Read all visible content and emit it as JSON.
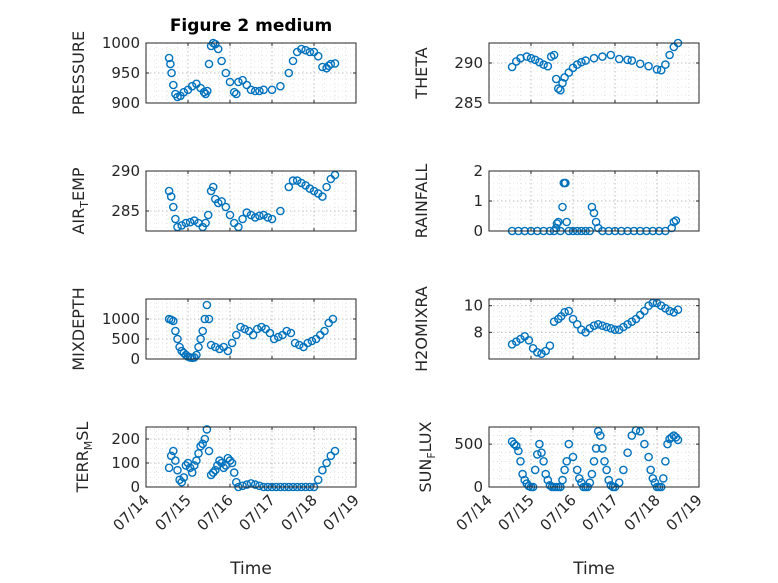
{
  "figure": {
    "title": "Figure 2 medium",
    "xlabel": "Time",
    "x_tick_labels": [
      "07/14",
      "07/15",
      "07/16",
      "07/17",
      "07/18",
      "07/19"
    ],
    "marker": "circle",
    "marker_color": "#0072BD"
  },
  "chart_data": [
    {
      "type": "scatter",
      "id": "pressure",
      "ylabel": "PRESSURE",
      "title": "Figure 2 medium",
      "xlim": [
        "07/14",
        "07/19"
      ],
      "ylim": [
        900,
        1000
      ],
      "yticks": [
        900,
        950,
        1000
      ],
      "grid": true,
      "x": [
        0.55,
        0.58,
        0.61,
        0.65,
        0.7,
        0.75,
        0.82,
        0.9,
        1.0,
        1.1,
        1.2,
        1.3,
        1.38,
        1.42,
        1.46,
        1.5,
        1.55,
        1.6,
        1.65,
        1.72,
        1.8,
        1.9,
        2.0,
        2.1,
        2.15,
        2.2,
        2.3,
        2.4,
        2.5,
        2.6,
        2.7,
        2.8,
        3.0,
        3.2,
        3.4,
        3.5,
        3.6,
        3.7,
        3.8,
        3.9,
        4.0,
        4.1,
        4.2,
        4.3,
        4.35,
        4.4,
        4.5
      ],
      "y": [
        975,
        965,
        950,
        930,
        915,
        910,
        912,
        918,
        922,
        928,
        932,
        925,
        918,
        915,
        920,
        965,
        995,
        1000,
        998,
        990,
        970,
        950,
        935,
        918,
        915,
        935,
        938,
        930,
        922,
        920,
        920,
        922,
        922,
        928,
        950,
        970,
        985,
        990,
        988,
        985,
        985,
        978,
        960,
        958,
        962,
        965,
        966
      ]
    },
    {
      "type": "scatter",
      "id": "theta",
      "ylabel": "THETA",
      "xlim": [
        "07/14",
        "07/19"
      ],
      "ylim": [
        285,
        292.5
      ],
      "yticks": [
        285,
        290
      ],
      "grid": true,
      "x": [
        0.55,
        0.65,
        0.75,
        0.9,
        1.0,
        1.1,
        1.2,
        1.3,
        1.4,
        1.48,
        1.55,
        1.6,
        1.65,
        1.7,
        1.75,
        1.8,
        1.9,
        2.0,
        2.1,
        2.2,
        2.3,
        2.5,
        2.7,
        2.9,
        3.1,
        3.3,
        3.4,
        3.6,
        3.8,
        4.0,
        4.1,
        4.2,
        4.3,
        4.4,
        4.5
      ],
      "y": [
        289.5,
        290.2,
        290.6,
        290.8,
        290.6,
        290.4,
        290.1,
        289.8,
        289.6,
        290.8,
        291,
        288,
        286.8,
        286.6,
        287.5,
        288.2,
        288.8,
        289.4,
        289.8,
        290.1,
        290.3,
        290.6,
        290.8,
        291,
        290.5,
        290.4,
        290.3,
        289.9,
        289.6,
        289.2,
        289.1,
        289.8,
        291,
        292,
        292.5
      ]
    },
    {
      "type": "scatter",
      "id": "air_temp",
      "ylabel": "AIR_TEMP",
      "xlim": [
        "07/14",
        "07/19"
      ],
      "ylim": [
        282.5,
        290
      ],
      "yticks": [
        285,
        290
      ],
      "grid": true,
      "x": [
        0.55,
        0.6,
        0.65,
        0.7,
        0.75,
        0.85,
        0.95,
        1.05,
        1.15,
        1.25,
        1.35,
        1.42,
        1.48,
        1.55,
        1.6,
        1.65,
        1.72,
        1.8,
        1.9,
        2.0,
        2.1,
        2.2,
        2.3,
        2.4,
        2.5,
        2.6,
        2.7,
        2.8,
        2.9,
        3.0,
        3.2,
        3.4,
        3.5,
        3.6,
        3.7,
        3.8,
        3.9,
        4.0,
        4.1,
        4.2,
        4.3,
        4.4,
        4.5
      ],
      "y": [
        287.5,
        286.8,
        285.5,
        284,
        283,
        283.2,
        283.5,
        283.6,
        283.8,
        283.5,
        283,
        283.5,
        284.5,
        287.5,
        288,
        286.5,
        286,
        286.2,
        285.5,
        284.5,
        283.5,
        283,
        284,
        284.8,
        284.5,
        284.2,
        284.4,
        284.5,
        284.2,
        284,
        285,
        288,
        288.8,
        288.8,
        288.5,
        288.2,
        287.8,
        287.5,
        287.2,
        286.8,
        288,
        289,
        289.5
      ]
    },
    {
      "type": "scatter",
      "id": "rainfall",
      "ylabel": "RAINFALL",
      "xlim": [
        "07/14",
        "07/19"
      ],
      "ylim": [
        0,
        2
      ],
      "yticks": [
        0,
        1,
        2
      ],
      "grid": true,
      "x": [
        0.55,
        0.7,
        0.85,
        1.0,
        1.15,
        1.3,
        1.45,
        1.55,
        1.6,
        1.62,
        1.65,
        1.7,
        1.75,
        1.78,
        1.8,
        1.82,
        1.85,
        1.9,
        2.0,
        2.1,
        2.2,
        2.3,
        2.4,
        2.45,
        2.5,
        2.55,
        2.6,
        2.7,
        2.85,
        3.0,
        3.15,
        3.3,
        3.45,
        3.6,
        3.75,
        3.9,
        4.05,
        4.2,
        4.35,
        4.4,
        4.45
      ],
      "y": [
        0,
        0,
        0,
        0,
        0,
        0,
        0,
        0,
        0.1,
        0.25,
        0.3,
        0,
        0.8,
        1.6,
        1.6,
        1.6,
        0.3,
        0,
        0,
        0,
        0,
        0,
        0,
        0.8,
        0.6,
        0.3,
        0.1,
        0,
        0,
        0,
        0,
        0,
        0,
        0,
        0,
        0,
        0,
        0,
        0.1,
        0.3,
        0.35
      ]
    },
    {
      "type": "scatter",
      "id": "mixdepth",
      "ylabel": "MIXDEPTH",
      "xlim": [
        "07/14",
        "07/19"
      ],
      "ylim": [
        0,
        1500
      ],
      "yticks": [
        0,
        500,
        1000
      ],
      "grid": true,
      "x": [
        0.55,
        0.6,
        0.65,
        0.7,
        0.75,
        0.8,
        0.85,
        0.9,
        0.95,
        1.0,
        1.05,
        1.1,
        1.15,
        1.2,
        1.25,
        1.3,
        1.35,
        1.4,
        1.45,
        1.5,
        1.55,
        1.65,
        1.75,
        1.85,
        1.95,
        2.05,
        2.15,
        2.25,
        2.35,
        2.45,
        2.55,
        2.65,
        2.75,
        2.85,
        2.95,
        3.05,
        3.15,
        3.25,
        3.35,
        3.45,
        3.55,
        3.65,
        3.75,
        3.85,
        3.95,
        4.05,
        4.15,
        4.25,
        4.35,
        4.45
      ],
      "y": [
        1000,
        980,
        950,
        700,
        500,
        300,
        200,
        150,
        100,
        60,
        40,
        30,
        40,
        100,
        300,
        500,
        700,
        1000,
        1350,
        1000,
        350,
        300,
        250,
        300,
        200,
        400,
        600,
        800,
        750,
        700,
        600,
        750,
        800,
        750,
        650,
        500,
        550,
        600,
        700,
        650,
        400,
        350,
        300,
        400,
        450,
        500,
        600,
        700,
        900,
        1000
      ]
    },
    {
      "type": "scatter",
      "id": "h2omixra",
      "ylabel": "H2OMIXRA",
      "xlim": [
        "07/14",
        "07/19"
      ],
      "ylim": [
        6,
        10.5
      ],
      "yticks": [
        8,
        10
      ],
      "grid": true,
      "x": [
        0.55,
        0.65,
        0.75,
        0.85,
        0.95,
        1.05,
        1.15,
        1.25,
        1.35,
        1.45,
        1.55,
        1.65,
        1.72,
        1.8,
        1.9,
        2.0,
        2.1,
        2.2,
        2.3,
        2.4,
        2.5,
        2.6,
        2.7,
        2.8,
        2.9,
        3.0,
        3.1,
        3.2,
        3.3,
        3.4,
        3.5,
        3.6,
        3.7,
        3.8,
        3.9,
        4.0,
        4.1,
        4.2,
        4.3,
        4.4,
        4.5
      ],
      "y": [
        7.1,
        7.3,
        7.5,
        7.7,
        7.4,
        6.8,
        6.5,
        6.4,
        6.6,
        7.0,
        8.8,
        9.0,
        9.2,
        9.5,
        9.6,
        9.0,
        8.6,
        8.2,
        8.0,
        8.3,
        8.5,
        8.6,
        8.5,
        8.4,
        8.3,
        8.2,
        8.2,
        8.4,
        8.6,
        8.8,
        9.0,
        9.3,
        9.6,
        10.0,
        10.2,
        10.2,
        10.0,
        9.8,
        9.6,
        9.5,
        9.7
      ]
    },
    {
      "type": "scatter",
      "id": "terr_msl",
      "ylabel": "TERR_MSL",
      "xlim": [
        "07/14",
        "07/19"
      ],
      "ylim": [
        0,
        250
      ],
      "yticks": [
        0,
        100,
        200
      ],
      "grid": true,
      "x": [
        0.55,
        0.6,
        0.65,
        0.7,
        0.75,
        0.8,
        0.85,
        0.9,
        0.95,
        1.0,
        1.05,
        1.1,
        1.15,
        1.2,
        1.25,
        1.3,
        1.35,
        1.4,
        1.45,
        1.5,
        1.55,
        1.6,
        1.65,
        1.7,
        1.75,
        1.8,
        1.85,
        1.9,
        1.95,
        2.0,
        2.05,
        2.1,
        2.15,
        2.2,
        2.3,
        2.4,
        2.5,
        2.6,
        2.7,
        2.8,
        2.9,
        3.0,
        3.1,
        3.2,
        3.3,
        3.4,
        3.5,
        3.6,
        3.7,
        3.8,
        3.9,
        4.0,
        4.1,
        4.2,
        4.3,
        4.4,
        4.5
      ],
      "y": [
        80,
        130,
        150,
        110,
        70,
        30,
        20,
        40,
        90,
        100,
        80,
        60,
        90,
        110,
        140,
        170,
        180,
        200,
        240,
        150,
        50,
        60,
        70,
        90,
        110,
        100,
        80,
        90,
        120,
        110,
        100,
        60,
        20,
        0,
        5,
        10,
        15,
        10,
        5,
        0,
        0,
        0,
        0,
        0,
        0,
        0,
        0,
        0,
        0,
        0,
        0,
        0,
        30,
        70,
        100,
        130,
        150
      ]
    },
    {
      "type": "scatter",
      "id": "sun_flux",
      "ylabel": "SUN_FLUX",
      "xlim": [
        "07/14",
        "07/19"
      ],
      "ylim": [
        0,
        700
      ],
      "yticks": [
        0,
        500
      ],
      "grid": true,
      "x": [
        0.55,
        0.6,
        0.65,
        0.7,
        0.75,
        0.8,
        0.85,
        0.9,
        0.95,
        1.0,
        1.05,
        1.1,
        1.15,
        1.2,
        1.25,
        1.3,
        1.35,
        1.4,
        1.45,
        1.5,
        1.55,
        1.6,
        1.65,
        1.7,
        1.75,
        1.8,
        1.85,
        1.9,
        2.0,
        2.1,
        2.15,
        2.2,
        2.25,
        2.3,
        2.35,
        2.4,
        2.45,
        2.5,
        2.55,
        2.6,
        2.65,
        2.7,
        2.75,
        2.8,
        2.85,
        2.9,
        2.95,
        3.0,
        3.1,
        3.2,
        3.3,
        3.4,
        3.5,
        3.6,
        3.7,
        3.8,
        3.85,
        3.9,
        3.95,
        4.0,
        4.05,
        4.1,
        4.15,
        4.2,
        4.25,
        4.3,
        4.35,
        4.4,
        4.45,
        4.5
      ],
      "y": [
        530,
        500,
        480,
        420,
        300,
        150,
        80,
        40,
        10,
        0,
        0,
        200,
        380,
        500,
        400,
        300,
        150,
        80,
        20,
        0,
        0,
        0,
        0,
        0,
        80,
        200,
        300,
        500,
        350,
        200,
        100,
        50,
        0,
        0,
        0,
        50,
        150,
        300,
        450,
        650,
        600,
        450,
        300,
        200,
        80,
        20,
        0,
        0,
        50,
        200,
        400,
        600,
        660,
        650,
        500,
        350,
        200,
        100,
        50,
        0,
        0,
        0,
        100,
        300,
        500,
        560,
        580,
        600,
        580,
        550
      ]
    }
  ]
}
